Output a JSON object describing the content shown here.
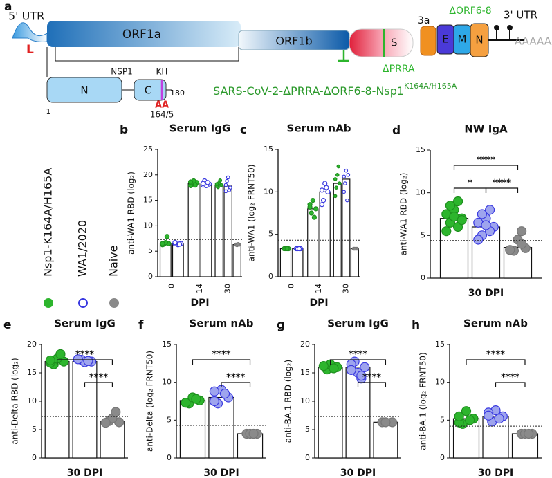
{
  "diagram": {
    "panel": "a",
    "utr5": "5' UTR",
    "leader": "L",
    "orf1a": "ORF1a",
    "orf1b": "ORF1b",
    "spike": "S",
    "prra": "ΔPRRA",
    "orf3a": "3a",
    "orf68": "ΔORF6-8",
    "e": "E",
    "m": "M",
    "n": "N",
    "utr3": "3' UTR",
    "polya": "AAAAAA",
    "nsp1": {
      "label": "NSP1",
      "n_domain": "N",
      "c_domain": "C",
      "kh": "KH",
      "start": "1",
      "end": "180",
      "aa": "AA",
      "site": "164/5"
    },
    "construct": "SARS-CoV-2-ΔPRRA-ΔORF6-8-Nsp1",
    "construct_sup": "K164A/H165A"
  },
  "legend": [
    {
      "name": "Nsp1-K164A/H165A",
      "color": "#2db52d"
    },
    {
      "name": "WA1/2020",
      "color": "#3a3ae0"
    },
    {
      "name": "Naive",
      "color": "#8a8a8a"
    }
  ],
  "chart_data": [
    {
      "type": "bar",
      "panel": "b",
      "title": "Serum IgG",
      "ylabel": "anti-WA1 RBD (log₂)",
      "xlabel": "DPI",
      "categories": [
        "0",
        "14",
        "30"
      ],
      "ylim": [
        0,
        25
      ],
      "yticks": [
        0,
        5,
        10,
        15,
        20,
        25
      ],
      "threshold": 7.3,
      "series": [
        {
          "values": [
            6.5,
            18.3,
            18
          ],
          "points": [
            [
              6.5,
              6.4,
              6.7,
              7.9,
              6.3,
              6.5
            ],
            [
              18.5,
              18.2,
              18.8,
              18,
              17.9,
              18.6
            ],
            [
              18,
              17.6,
              18.4,
              18.9,
              17.8,
              18.2
            ]
          ]
        },
        {
          "values": [
            6.5,
            18.2,
            17.8
          ],
          "points": [
            [
              6.5,
              6.6,
              6.3,
              6.4,
              6.5,
              6.7
            ],
            [
              18.2,
              18.8,
              17.9,
              18.5,
              18,
              18.3
            ],
            [
              17.5,
              18.8,
              19.5,
              17,
              18,
              16.8
            ]
          ]
        },
        {
          "values": [
            null,
            null,
            6.3
          ],
          "points": [
            null,
            null,
            [
              6.3,
              6.3,
              6.2,
              6.4
            ]
          ]
        }
      ]
    },
    {
      "type": "bar",
      "panel": "c",
      "title": "Serum nAb",
      "ylabel": "anti-WA1 (log₂ FRNT50)",
      "xlabel": "DPI",
      "categories": [
        "0",
        "14",
        "30"
      ],
      "ylim": [
        0,
        15
      ],
      "yticks": [
        0,
        5,
        10,
        15
      ],
      "threshold": 4.3,
      "series": [
        {
          "values": [
            3.3,
            8,
            11
          ],
          "points": [
            [
              3.3,
              3.3,
              3.3,
              3.3
            ],
            [
              8,
              7.5,
              9,
              7,
              8.5,
              8.2
            ],
            [
              11,
              10.5,
              12,
              13,
              9.5,
              11.5
            ]
          ]
        },
        {
          "values": [
            3.3,
            10,
            11.5
          ],
          "points": [
            [
              3.3,
              3.3,
              3.3,
              3.3
            ],
            [
              10,
              9,
              11,
              10.5,
              8.5,
              10.2
            ],
            [
              12,
              11,
              12.5,
              9,
              10,
              11.8
            ]
          ]
        },
        {
          "values": [
            null,
            null,
            3.3
          ],
          "points": [
            null,
            null,
            [
              3.3,
              3.3,
              3.3
            ]
          ]
        }
      ]
    },
    {
      "type": "bar",
      "panel": "d",
      "title": "NW IgA",
      "ylabel": "anti-WA1 RBD (log₂)",
      "xlabel": "30 DPI",
      "categories": [
        null
      ],
      "ylim": [
        0,
        15
      ],
      "yticks": [
        0,
        5,
        10,
        15
      ],
      "threshold": 4.4,
      "brackets": [
        {
          "from": 0,
          "to": 2,
          "label": "****"
        },
        {
          "from": 0,
          "to": 1,
          "label": "*"
        },
        {
          "from": 1,
          "to": 2,
          "label": "****"
        }
      ],
      "series": [
        {
          "values": [
            7
          ],
          "points": [
            [
              7,
              6.5,
              8,
              9,
              7.5,
              5.5,
              6,
              7.2,
              8.5,
              6.8
            ]
          ]
        },
        {
          "values": [
            6
          ],
          "points": [
            [
              6,
              5,
              7,
              8,
              6.5,
              4.5,
              5.5,
              6.2,
              7.5
            ]
          ]
        },
        {
          "values": [
            3.6
          ],
          "points": [
            [
              3.5,
              3.2,
              4.5,
              5.5,
              3.3,
              3.3,
              4
            ]
          ]
        }
      ]
    },
    {
      "type": "bar",
      "panel": "e",
      "title": "Serum IgG",
      "ylabel": "anti-Delta RBD (log₂)",
      "xlabel": "30 DPI",
      "categories": [
        null
      ],
      "ylim": [
        0,
        20
      ],
      "yticks": [
        0,
        5,
        10,
        15,
        20
      ],
      "threshold": 7.3,
      "brackets": [
        {
          "from": 0,
          "to": 2,
          "label": "****"
        },
        {
          "from": 1,
          "to": 2,
          "label": "****"
        }
      ],
      "series": [
        {
          "values": [
            17
          ],
          "points": [
            [
              17,
              16.5,
              17.5,
              18.3,
              16.8,
              17.2
            ]
          ]
        },
        {
          "values": [
            17
          ],
          "points": [
            [
              17,
              17.3,
              16.9,
              17.1,
              17.4
            ]
          ]
        },
        {
          "values": [
            6.5
          ],
          "points": [
            [
              6.3,
              6.5,
              7,
              8.1,
              6.2
            ]
          ]
        }
      ]
    },
    {
      "type": "bar",
      "panel": "f",
      "title": "Serum nAb",
      "ylabel": "anti-Delta (log₂ FRNT50)",
      "xlabel": "30 DPI",
      "categories": [
        null
      ],
      "ylim": [
        0,
        15
      ],
      "yticks": [
        0,
        5,
        10,
        15
      ],
      "threshold": 4.3,
      "brackets": [
        {
          "from": 0,
          "to": 2,
          "label": "****"
        },
        {
          "from": 1,
          "to": 2,
          "label": "****"
        }
      ],
      "series": [
        {
          "values": [
            7.6
          ],
          "points": [
            [
              7.6,
              7.2,
              8,
              7.8,
              7.3
            ]
          ]
        },
        {
          "values": [
            8
          ],
          "points": [
            [
              8,
              7.2,
              9,
              8.5,
              7.5,
              8.8
            ]
          ]
        },
        {
          "values": [
            3.2
          ],
          "points": [
            [
              3.2,
              3.2,
              3.2,
              3.2
            ]
          ]
        }
      ]
    },
    {
      "type": "bar",
      "panel": "g",
      "title": "Serum IgG",
      "ylabel": "anti-BA.1 RBD (log₂)",
      "xlabel": "30 DPI",
      "categories": [
        null
      ],
      "ylim": [
        0,
        20
      ],
      "yticks": [
        0,
        5,
        10,
        15,
        20
      ],
      "threshold": 7.3,
      "brackets": [
        {
          "from": 0,
          "to": 2,
          "label": "****"
        },
        {
          "from": 1,
          "to": 2,
          "label": "****"
        }
      ],
      "series": [
        {
          "values": [
            16
          ],
          "points": [
            [
              16,
              15.6,
              16.5,
              15.8,
              16.2
            ]
          ]
        },
        {
          "values": [
            16
          ],
          "points": [
            [
              16,
              17,
              15,
              14,
              16.5,
              15.5,
              14.5
            ]
          ]
        },
        {
          "values": [
            6.3
          ],
          "points": [
            [
              6.3,
              6.3,
              6.3
            ]
          ]
        }
      ]
    },
    {
      "type": "bar",
      "panel": "h",
      "title": "Serum nAb",
      "ylabel": "anti-BA.1 (log₂ FRNT50)",
      "xlabel": "30 DPI",
      "categories": [
        null
      ],
      "ylim": [
        0,
        15
      ],
      "yticks": [
        0,
        5,
        10,
        15
      ],
      "threshold": 4.2,
      "brackets": [
        {
          "from": 0,
          "to": 2,
          "label": "****"
        },
        {
          "from": 1,
          "to": 2,
          "label": "****"
        }
      ],
      "series": [
        {
          "values": [
            5.2
          ],
          "points": [
            [
              5.2,
              4.5,
              6.2,
              5,
              4.7,
              5.5
            ]
          ]
        },
        {
          "values": [
            5.5
          ],
          "points": [
            [
              5.5,
              4.8,
              6.3,
              5.2,
              6,
              5.6
            ]
          ]
        },
        {
          "values": [
            3.2
          ],
          "points": [
            [
              3.2,
              3.2,
              3.2,
              3.2
            ]
          ]
        }
      ]
    }
  ]
}
